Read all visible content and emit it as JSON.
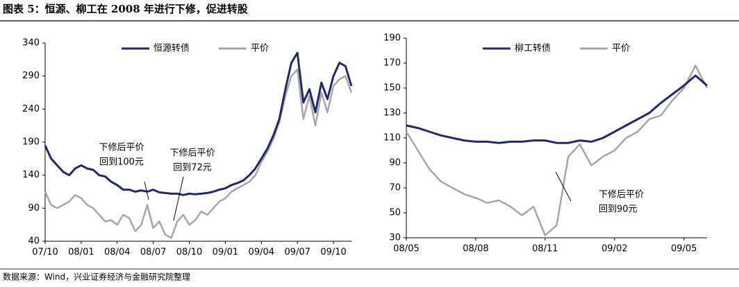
{
  "title": "图表 5：恒源、柳工在 2008 年进行下修，促进转股",
  "source": "数据来源：Wind，兴业证券经济与金融研究院整理",
  "chart_data": [
    {
      "type": "line",
      "x": [
        "07/10",
        null,
        null,
        null,
        null,
        null,
        "08/01",
        null,
        null,
        null,
        null,
        null,
        "08/04",
        null,
        null,
        null,
        null,
        null,
        "08/07",
        null,
        null,
        null,
        null,
        null,
        "08/10",
        null,
        null,
        null,
        null,
        null,
        "09/01",
        null,
        null,
        null,
        null,
        null,
        "09/04",
        null,
        null,
        null,
        null,
        null,
        "09/07",
        null,
        null,
        null,
        null,
        null,
        "09/10",
        null,
        null,
        null
      ],
      "series": [
        {
          "name": "恒源转债",
          "color": "#1f2a6b",
          "values": [
            185,
            165,
            155,
            145,
            140,
            150,
            155,
            150,
            148,
            140,
            138,
            130,
            125,
            118,
            118,
            115,
            117,
            115,
            118,
            114,
            113,
            112,
            112,
            110,
            112,
            111,
            112,
            113,
            115,
            118,
            120,
            125,
            128,
            132,
            140,
            150,
            165,
            180,
            200,
            225,
            270,
            310,
            325,
            250,
            270,
            235,
            280,
            255,
            290,
            310,
            305,
            275
          ]
        },
        {
          "name": "平价",
          "color": "#a6a6a6",
          "values": [
            115,
            95,
            90,
            95,
            100,
            110,
            105,
            95,
            90,
            80,
            70,
            72,
            65,
            80,
            75,
            55,
            65,
            95,
            60,
            70,
            50,
            45,
            70,
            80,
            65,
            72,
            85,
            80,
            90,
            100,
            105,
            115,
            120,
            125,
            130,
            140,
            160,
            175,
            195,
            220,
            260,
            290,
            300,
            225,
            260,
            215,
            265,
            235,
            275,
            285,
            290,
            265
          ]
        }
      ],
      "ylim": [
        40,
        340
      ],
      "yticks": [
        40,
        90,
        140,
        190,
        240,
        290,
        340
      ],
      "annotations": [
        {
          "lines": [
            "下修后平价",
            "回到100元"
          ]
        },
        {
          "lines": [
            "下修后平价",
            "回到72元"
          ]
        }
      ]
    },
    {
      "type": "line",
      "x": [
        "08/05",
        null,
        null,
        null,
        null,
        null,
        "08/08",
        null,
        null,
        null,
        null,
        null,
        "08/11",
        null,
        null,
        null,
        null,
        null,
        "09/02",
        null,
        null,
        null,
        null,
        null,
        "09/05",
        null,
        null
      ],
      "series": [
        {
          "name": "柳工转债",
          "color": "#1f2a6b",
          "values": [
            120,
            118,
            115,
            112,
            110,
            108,
            107,
            107,
            106,
            107,
            107,
            108,
            108,
            106,
            106,
            108,
            107,
            110,
            115,
            120,
            125,
            130,
            138,
            145,
            152,
            160,
            152
          ]
        },
        {
          "name": "平价",
          "color": "#a6a6a6",
          "values": [
            115,
            100,
            85,
            75,
            70,
            65,
            62,
            58,
            60,
            55,
            48,
            55,
            32,
            40,
            95,
            105,
            88,
            95,
            100,
            110,
            115,
            125,
            128,
            140,
            150,
            168,
            150
          ]
        }
      ],
      "ylim": [
        30,
        190
      ],
      "yticks": [
        30,
        50,
        70,
        90,
        110,
        130,
        150,
        170,
        190
      ],
      "annotations": [
        {
          "lines": [
            "下修后平价",
            "回到90元"
          ]
        }
      ]
    }
  ]
}
